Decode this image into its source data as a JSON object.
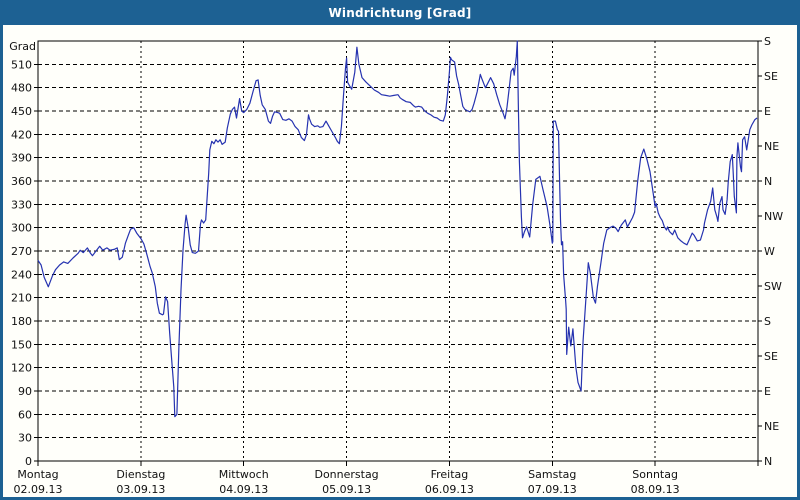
{
  "window": {
    "title": "Windrichtung [Grad]",
    "title_bg": "#1d6193",
    "border_color": "#1d6193",
    "background": "#fffffa"
  },
  "chart_data": {
    "type": "line",
    "title": "Windrichtung [Grad]",
    "unit_label": "Grad",
    "line_color": "#2633b0",
    "grid_color": "#000000",
    "text_color": "#111111",
    "ylim": [
      0,
      540
    ],
    "y_grid_step": 30,
    "xlim_days": [
      0,
      7
    ],
    "left_ticks": [
      510,
      480,
      450,
      420,
      390,
      360,
      330,
      300,
      270,
      240,
      210,
      180,
      150,
      120,
      90,
      60,
      30,
      0
    ],
    "right_ticks": [
      {
        "deg": 540,
        "label": "S"
      },
      {
        "deg": 495,
        "label": "SE"
      },
      {
        "deg": 450,
        "label": "E"
      },
      {
        "deg": 405,
        "label": "NE"
      },
      {
        "deg": 360,
        "label": "N"
      },
      {
        "deg": 315,
        "label": "NW"
      },
      {
        "deg": 270,
        "label": "W"
      },
      {
        "deg": 225,
        "label": "SW"
      },
      {
        "deg": 180,
        "label": "S"
      },
      {
        "deg": 135,
        "label": "SE"
      },
      {
        "deg": 90,
        "label": "E"
      },
      {
        "deg": 45,
        "label": "NE"
      },
      {
        "deg": 0,
        "label": "N"
      }
    ],
    "days": [
      {
        "name": "Montag",
        "date": "02.09.13"
      },
      {
        "name": "Dienstag",
        "date": "03.09.13"
      },
      {
        "name": "Mittwoch",
        "date": "04.09.13"
      },
      {
        "name": "Donnerstag",
        "date": "05.09.13"
      },
      {
        "name": "Freitag",
        "date": "06.09.13"
      },
      {
        "name": "Samstag",
        "date": "07.09.13"
      },
      {
        "name": "Sonntag",
        "date": "08.09.13"
      }
    ],
    "series": [
      {
        "name": "Windrichtung",
        "points": [
          [
            0.0,
            258
          ],
          [
            0.03,
            252
          ],
          [
            0.06,
            236
          ],
          [
            0.1,
            224
          ],
          [
            0.14,
            238
          ],
          [
            0.17,
            246
          ],
          [
            0.21,
            252
          ],
          [
            0.25,
            256
          ],
          [
            0.29,
            254
          ],
          [
            0.34,
            261
          ],
          [
            0.39,
            267
          ],
          [
            0.41,
            271
          ],
          [
            0.44,
            268
          ],
          [
            0.48,
            274
          ],
          [
            0.51,
            267
          ],
          [
            0.53,
            264
          ],
          [
            0.57,
            271
          ],
          [
            0.6,
            276
          ],
          [
            0.63,
            271
          ],
          [
            0.67,
            274
          ],
          [
            0.7,
            271
          ],
          [
            0.74,
            272
          ],
          [
            0.77,
            274
          ],
          [
            0.79,
            259
          ],
          [
            0.82,
            262
          ],
          [
            0.85,
            280
          ],
          [
            0.88,
            291
          ],
          [
            0.9,
            298
          ],
          [
            0.93,
            300
          ],
          [
            0.96,
            293
          ],
          [
            1.0,
            286
          ],
          [
            1.03,
            279
          ],
          [
            1.06,
            265
          ],
          [
            1.09,
            250
          ],
          [
            1.11,
            242
          ],
          [
            1.14,
            224
          ],
          [
            1.16,
            203
          ],
          [
            1.18,
            190
          ],
          [
            1.21,
            188
          ],
          [
            1.22,
            189
          ],
          [
            1.24,
            211
          ],
          [
            1.26,
            205
          ],
          [
            1.28,
            164
          ],
          [
            1.3,
            130
          ],
          [
            1.32,
            95
          ],
          [
            1.33,
            57
          ],
          [
            1.35,
            60
          ],
          [
            1.37,
            147
          ],
          [
            1.39,
            220
          ],
          [
            1.41,
            271
          ],
          [
            1.43,
            305
          ],
          [
            1.44,
            316
          ],
          [
            1.46,
            300
          ],
          [
            1.48,
            278
          ],
          [
            1.5,
            268
          ],
          [
            1.53,
            267
          ],
          [
            1.56,
            270
          ],
          [
            1.58,
            305
          ],
          [
            1.59,
            310
          ],
          [
            1.61,
            306
          ],
          [
            1.63,
            310
          ],
          [
            1.64,
            330
          ],
          [
            1.66,
            370
          ],
          [
            1.67,
            400
          ],
          [
            1.69,
            411
          ],
          [
            1.71,
            408
          ],
          [
            1.73,
            413
          ],
          [
            1.75,
            410
          ],
          [
            1.77,
            413
          ],
          [
            1.79,
            407
          ],
          [
            1.82,
            410
          ],
          [
            1.84,
            428
          ],
          [
            1.87,
            446
          ],
          [
            1.89,
            452
          ],
          [
            1.91,
            455
          ],
          [
            1.93,
            441
          ],
          [
            1.96,
            466
          ],
          [
            1.98,
            450
          ],
          [
            2.0,
            448
          ],
          [
            2.03,
            452
          ],
          [
            2.06,
            460
          ],
          [
            2.09,
            475
          ],
          [
            2.12,
            489
          ],
          [
            2.14,
            490
          ],
          [
            2.16,
            470
          ],
          [
            2.18,
            458
          ],
          [
            2.21,
            452
          ],
          [
            2.24,
            437
          ],
          [
            2.26,
            434
          ],
          [
            2.28,
            443
          ],
          [
            2.3,
            449
          ],
          [
            2.33,
            448
          ],
          [
            2.35,
            447
          ],
          [
            2.38,
            439
          ],
          [
            2.41,
            438
          ],
          [
            2.44,
            440
          ],
          [
            2.47,
            437
          ],
          [
            2.5,
            430
          ],
          [
            2.53,
            426
          ],
          [
            2.56,
            416
          ],
          [
            2.59,
            412
          ],
          [
            2.61,
            420
          ],
          [
            2.63,
            445
          ],
          [
            2.64,
            440
          ],
          [
            2.66,
            433
          ],
          [
            2.69,
            430
          ],
          [
            2.72,
            431
          ],
          [
            2.74,
            429
          ],
          [
            2.77,
            430
          ],
          [
            2.8,
            437
          ],
          [
            2.83,
            430
          ],
          [
            2.86,
            423
          ],
          [
            2.89,
            416
          ],
          [
            2.91,
            411
          ],
          [
            2.93,
            408
          ],
          [
            2.95,
            430
          ],
          [
            2.97,
            470
          ],
          [
            2.99,
            505
          ],
          [
            3.0,
            518
          ],
          [
            3.01,
            487
          ],
          [
            3.03,
            482
          ],
          [
            3.05,
            478
          ],
          [
            3.08,
            500
          ],
          [
            3.1,
            532
          ],
          [
            3.12,
            510
          ],
          [
            3.15,
            493
          ],
          [
            3.19,
            487
          ],
          [
            3.23,
            482
          ],
          [
            3.27,
            477
          ],
          [
            3.31,
            474
          ],
          [
            3.34,
            471
          ],
          [
            3.38,
            470
          ],
          [
            3.42,
            469
          ],
          [
            3.46,
            470
          ],
          [
            3.5,
            471
          ],
          [
            3.52,
            467
          ],
          [
            3.54,
            465
          ],
          [
            3.58,
            462
          ],
          [
            3.62,
            461
          ],
          [
            3.65,
            457
          ],
          [
            3.67,
            455
          ],
          [
            3.7,
            456
          ],
          [
            3.73,
            455
          ],
          [
            3.76,
            450
          ],
          [
            3.79,
            447
          ],
          [
            3.82,
            445
          ],
          [
            3.85,
            442
          ],
          [
            3.88,
            441
          ],
          [
            3.91,
            438
          ],
          [
            3.94,
            437
          ],
          [
            3.96,
            445
          ],
          [
            3.98,
            470
          ],
          [
            4.0,
            500
          ],
          [
            4.01,
            519
          ],
          [
            4.02,
            516
          ],
          [
            4.05,
            513
          ],
          [
            4.07,
            495
          ],
          [
            4.09,
            484
          ],
          [
            4.11,
            470
          ],
          [
            4.13,
            456
          ],
          [
            4.15,
            452
          ],
          [
            4.18,
            450
          ],
          [
            4.2,
            449
          ],
          [
            4.22,
            452
          ],
          [
            4.24,
            460
          ],
          [
            4.27,
            475
          ],
          [
            4.3,
            497
          ],
          [
            4.32,
            490
          ],
          [
            4.35,
            480
          ],
          [
            4.37,
            485
          ],
          [
            4.4,
            493
          ],
          [
            4.43,
            485
          ],
          [
            4.46,
            471
          ],
          [
            4.49,
            458
          ],
          [
            4.52,
            448
          ],
          [
            4.54,
            440
          ],
          [
            4.56,
            455
          ],
          [
            4.58,
            478
          ],
          [
            4.6,
            501
          ],
          [
            4.62,
            505
          ],
          [
            4.63,
            496
          ],
          [
            4.65,
            520
          ],
          [
            4.66,
            540
          ],
          [
            4.67,
            460
          ],
          [
            4.68,
            385
          ],
          [
            4.7,
            314
          ],
          [
            4.71,
            287
          ],
          [
            4.73,
            295
          ],
          [
            4.75,
            301
          ],
          [
            4.78,
            288
          ],
          [
            4.81,
            330
          ],
          [
            4.84,
            362
          ],
          [
            4.88,
            366
          ],
          [
            4.91,
            349
          ],
          [
            4.95,
            327
          ],
          [
            4.98,
            301
          ],
          [
            5.0,
            280
          ],
          [
            5.005,
            282
          ],
          [
            5.01,
            437
          ],
          [
            5.03,
            437
          ],
          [
            5.05,
            426
          ],
          [
            5.06,
            424
          ],
          [
            5.07,
            365
          ],
          [
            5.08,
            310
          ],
          [
            5.09,
            278
          ],
          [
            5.1,
            282
          ],
          [
            5.11,
            240
          ],
          [
            5.13,
            205
          ],
          [
            5.135,
            195
          ],
          [
            5.14,
            137
          ],
          [
            5.16,
            172
          ],
          [
            5.18,
            148
          ],
          [
            5.2,
            170
          ],
          [
            5.23,
            120
          ],
          [
            5.25,
            101
          ],
          [
            5.28,
            90
          ],
          [
            5.3,
            155
          ],
          [
            5.32,
            195
          ],
          [
            5.35,
            255
          ],
          [
            5.37,
            242
          ],
          [
            5.4,
            210
          ],
          [
            5.42,
            203
          ],
          [
            5.44,
            225
          ],
          [
            5.47,
            252
          ],
          [
            5.5,
            280
          ],
          [
            5.53,
            297
          ],
          [
            5.56,
            300
          ],
          [
            5.59,
            302
          ],
          [
            5.62,
            299
          ],
          [
            5.64,
            295
          ],
          [
            5.67,
            303
          ],
          [
            5.71,
            310
          ],
          [
            5.73,
            301
          ],
          [
            5.76,
            308
          ],
          [
            5.78,
            313
          ],
          [
            5.8,
            320
          ],
          [
            5.83,
            360
          ],
          [
            5.86,
            390
          ],
          [
            5.89,
            401
          ],
          [
            5.92,
            388
          ],
          [
            5.95,
            372
          ],
          [
            5.98,
            345
          ],
          [
            6.0,
            327
          ],
          [
            6.01,
            331
          ],
          [
            6.03,
            319
          ],
          [
            6.05,
            313
          ],
          [
            6.07,
            309
          ],
          [
            6.09,
            301
          ],
          [
            6.11,
            297
          ],
          [
            6.12,
            301
          ],
          [
            6.14,
            295
          ],
          [
            6.17,
            291
          ],
          [
            6.19,
            297
          ],
          [
            6.22,
            287
          ],
          [
            6.25,
            283
          ],
          [
            6.28,
            280
          ],
          [
            6.31,
            278
          ],
          [
            6.34,
            287
          ],
          [
            6.36,
            293
          ],
          [
            6.38,
            290
          ],
          [
            6.41,
            283
          ],
          [
            6.44,
            284
          ],
          [
            6.47,
            297
          ],
          [
            6.48,
            306
          ],
          [
            6.51,
            323
          ],
          [
            6.54,
            334
          ],
          [
            6.56,
            351
          ],
          [
            6.58,
            323
          ],
          [
            6.6,
            314
          ],
          [
            6.61,
            308
          ],
          [
            6.63,
            332
          ],
          [
            6.65,
            340
          ],
          [
            6.66,
            323
          ],
          [
            6.68,
            317
          ],
          [
            6.7,
            336
          ],
          [
            6.71,
            358
          ],
          [
            6.73,
            385
          ],
          [
            6.75,
            394
          ],
          [
            6.76,
            368
          ],
          [
            6.77,
            340
          ],
          [
            6.79,
            319
          ],
          [
            6.795,
            391
          ],
          [
            6.805,
            409
          ],
          [
            6.83,
            378
          ],
          [
            6.84,
            372
          ],
          [
            6.85,
            413
          ],
          [
            6.87,
            417
          ],
          [
            6.89,
            400
          ],
          [
            6.92,
            426
          ],
          [
            6.94,
            432
          ],
          [
            6.97,
            439
          ],
          [
            6.99,
            441
          ]
        ]
      }
    ]
  }
}
